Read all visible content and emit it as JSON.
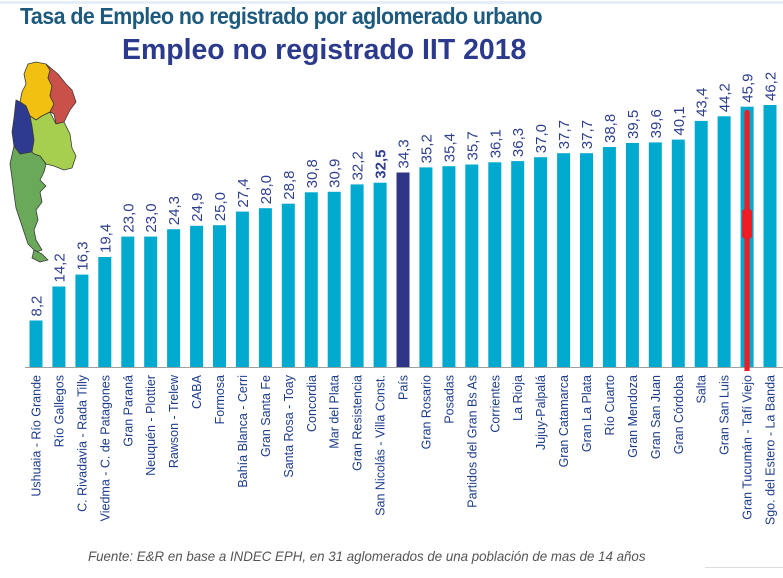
{
  "header": {
    "title": "Tasa de Empleo no registrado por aglomerado urbano",
    "subtitle": "Empleo no registrado IIT 2018"
  },
  "footer": {
    "source": "Fuente: E&R en base a INDEC EPH, en 31 aglomerados de una población de mas de 14 años"
  },
  "map": {
    "icon": "argentina-map-icon",
    "region_colors": [
      "#f2c010",
      "#c9514a",
      "#2d3a8f",
      "#a7cf4f",
      "#6aa85a"
    ]
  },
  "colors": {
    "bar": "#00aacf",
    "bar_highlight": "#2e3586",
    "marker": "#ee1c25",
    "value_label": "#2e3f8f",
    "category_label": "#1d3c8c",
    "axis": "#a0a0a0"
  },
  "chart_data": {
    "type": "bar",
    "title": "Empleo no registrado IIT 2018",
    "xlabel": "",
    "ylabel": "",
    "ylim": [
      0,
      46.2
    ],
    "grid": false,
    "legend": "none",
    "highlight_category": "País",
    "bold_label_category": "San Nicolás - Villa Const.",
    "marked_category": "Gran Tucumán - Tafí Viejo",
    "categories": [
      "Ushuaia - Río Grande",
      "Río Gallegos",
      "C. Rivadavia - Rada Tilly",
      "Viedma - C. de Patagones",
      "Gran Paraná",
      "Neuquén - Plottier",
      "Rawson - Trelew",
      "CABA",
      "Formosa",
      "Bahía Blanca - Cerri",
      "Gran Santa Fe",
      "Santa Rosa - Toay",
      "Concordia",
      "Mar del Plata",
      "Gran Resistencia",
      "San Nicolás - Villa Const.",
      "País",
      "Gran Rosario",
      "Posadas",
      "Partidos del Gran Bs As",
      "Corrientes",
      "La Rioja",
      "Jujuy-Palpalá",
      "Gran Catamarca",
      "Gran La Plata",
      "Río Cuarto",
      "Gran Mendoza",
      "Gran San Juan",
      "Gran Córdoba",
      "Salta",
      "Gran San Luis",
      "Gran Tucumán - Tafí Viejo",
      "Sgo. del Estero - La Banda"
    ],
    "values": [
      8.2,
      14.2,
      16.3,
      19.4,
      23.0,
      23.0,
      24.3,
      24.9,
      25.0,
      27.4,
      28.0,
      28.8,
      30.8,
      30.9,
      32.2,
      32.5,
      34.3,
      35.2,
      35.4,
      35.7,
      36.1,
      36.3,
      37.0,
      37.7,
      37.7,
      38.8,
      39.5,
      39.6,
      40.1,
      43.4,
      44.2,
      45.9,
      46.2
    ],
    "value_labels": [
      "8,2",
      "14,2",
      "16,3",
      "19,4",
      "23,0",
      "23,0",
      "24,3",
      "24,9",
      "25,0",
      "27,4",
      "28,0",
      "28,8",
      "30,8",
      "30,9",
      "32,2",
      "32,5",
      "34,3",
      "35,2",
      "35,4",
      "35,7",
      "36,1",
      "36,3",
      "37,0",
      "37,7",
      "37,7",
      "38,8",
      "39,5",
      "39,6",
      "40,1",
      "43,4",
      "44,2",
      "45,9",
      "46,2"
    ]
  }
}
